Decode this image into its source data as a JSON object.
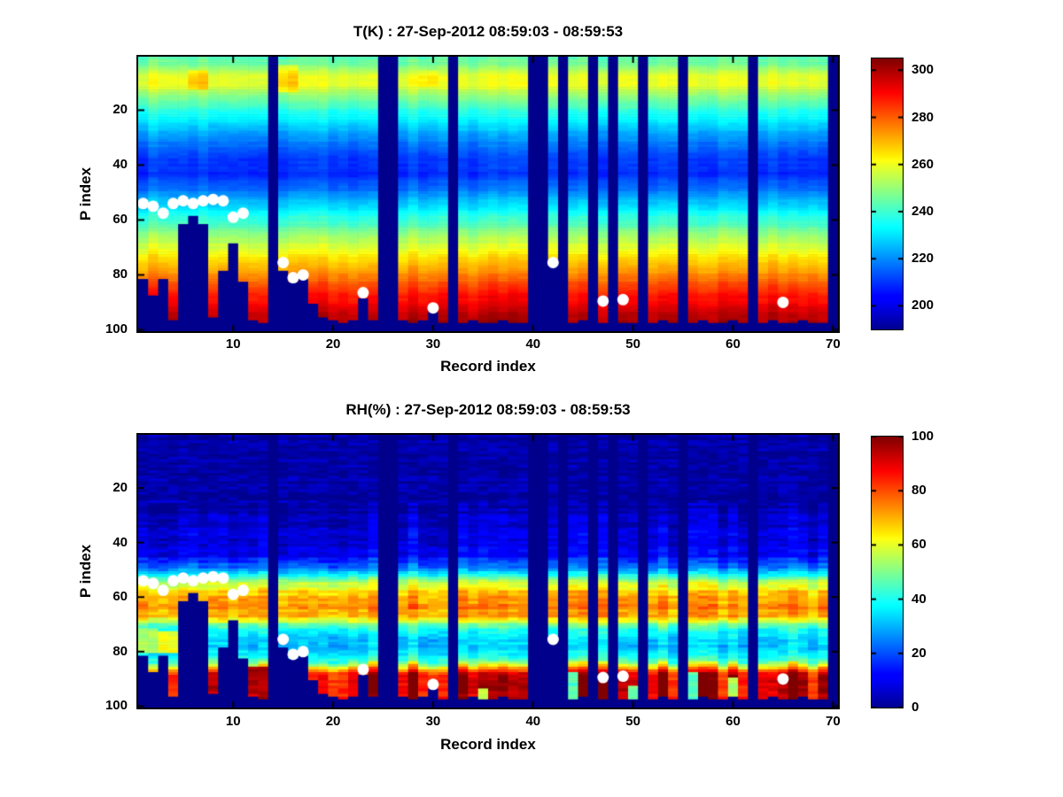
{
  "figure": {
    "background": "#ffffff",
    "marker_color": "#ffffff",
    "missing_color": "#00008C",
    "colormap": "jet"
  },
  "chart_data": [
    {
      "type": "heatmap",
      "id": "temperature",
      "title": "T(K) : 27-Sep-2012 08:59:03 - 08:59:53",
      "xlabel": "Record index",
      "ylabel": "P index",
      "x_ticks": [
        10,
        20,
        30,
        40,
        50,
        60,
        70
      ],
      "y_ticks": [
        20,
        40,
        60,
        80,
        100
      ],
      "x_range": [
        0.5,
        70.5
      ],
      "y_range": [
        0.5,
        100.5
      ],
      "grid": false,
      "colorbar": {
        "ticks": [
          200,
          220,
          240,
          260,
          280,
          300
        ],
        "range": [
          190,
          305
        ]
      },
      "value_profile": [
        [
          1,
          243
        ],
        [
          3,
          247
        ],
        [
          5,
          252
        ],
        [
          8,
          260
        ],
        [
          11,
          259
        ],
        [
          14,
          251
        ],
        [
          18,
          243
        ],
        [
          22,
          235
        ],
        [
          27,
          226
        ],
        [
          32,
          218
        ],
        [
          38,
          211
        ],
        [
          43,
          209
        ],
        [
          48,
          216
        ],
        [
          54,
          228
        ],
        [
          60,
          240
        ],
        [
          66,
          251
        ],
        [
          72,
          262
        ],
        [
          78,
          272
        ],
        [
          84,
          283
        ],
        [
          90,
          292
        ],
        [
          95,
          298
        ],
        [
          100,
          302
        ]
      ],
      "anomalies": [
        {
          "records": [
            6,
            7
          ],
          "p": [
            6,
            12
          ],
          "delta": 9
        },
        {
          "records": [
            15,
            16
          ],
          "p": [
            4,
            13
          ],
          "delta": 9
        },
        {
          "records": [
            29,
            30
          ],
          "p": [
            6,
            11
          ],
          "delta": 5
        }
      ],
      "patches": [],
      "texture": {
        "seed": 7,
        "column": 2.5,
        "column_deep": 3,
        "deep_start": 82,
        "row": 1.2,
        "cell": 1.2,
        "column_from_p": 1
      }
    },
    {
      "type": "heatmap",
      "id": "relative-humidity",
      "title": "RH(%) : 27-Sep-2012 08:59:03 - 08:59:53",
      "xlabel": "Record index",
      "ylabel": "P index",
      "x_ticks": [
        10,
        20,
        30,
        40,
        50,
        60,
        70
      ],
      "y_ticks": [
        20,
        40,
        60,
        80,
        100
      ],
      "x_range": [
        0.5,
        70.5
      ],
      "y_range": [
        0.5,
        100.5
      ],
      "grid": false,
      "colorbar": {
        "ticks": [
          0,
          20,
          40,
          60,
          80,
          100
        ],
        "range": [
          0,
          100
        ]
      },
      "value_profile": [
        [
          1,
          2
        ],
        [
          22,
          2
        ],
        [
          28,
          4
        ],
        [
          34,
          7
        ],
        [
          40,
          9
        ],
        [
          45,
          13
        ],
        [
          48,
          20
        ],
        [
          51,
          33
        ],
        [
          54,
          55
        ],
        [
          57,
          64
        ],
        [
          60,
          70
        ],
        [
          64,
          74
        ],
        [
          67,
          71
        ],
        [
          69,
          58
        ],
        [
          71,
          45
        ],
        [
          74,
          36
        ],
        [
          78,
          32
        ],
        [
          81,
          38
        ],
        [
          84,
          50
        ],
        [
          86,
          68
        ],
        [
          88,
          88
        ],
        [
          90,
          94
        ],
        [
          93,
          96
        ],
        [
          96,
          93
        ],
        [
          100,
          90
        ]
      ],
      "anomalies": [],
      "patches": [
        {
          "records": [
            1,
            2
          ],
          "p": [
            72,
            80
          ],
          "value": 55
        },
        {
          "records": [
            3,
            4
          ],
          "p": [
            73,
            80
          ],
          "value": 62
        },
        {
          "records": [
            12,
            13
          ],
          "p": [
            86,
            95
          ],
          "value": 96
        },
        {
          "records": [
            35,
            35
          ],
          "p": [
            94,
            97
          ],
          "value": 55
        },
        {
          "records": [
            44,
            44
          ],
          "p": [
            88,
            97
          ],
          "value": 45
        },
        {
          "records": [
            50,
            50
          ],
          "p": [
            93,
            97
          ],
          "value": 50
        },
        {
          "records": [
            56,
            56
          ],
          "p": [
            88,
            97
          ],
          "value": 45
        },
        {
          "records": [
            60,
            60
          ],
          "p": [
            90,
            97
          ],
          "value": 55
        }
      ],
      "texture": {
        "seed": 13,
        "column": 4,
        "column_deep": 12,
        "deep_start": 84,
        "row": 2.5,
        "cell": 3.5,
        "column_from_p": 26
      },
      "value_clamp": [
        0,
        100
      ]
    }
  ],
  "shared": {
    "records": 70,
    "p_levels": 100,
    "surface_p": [
      81,
      87,
      81,
      96,
      61,
      58,
      61,
      95,
      78,
      68,
      82,
      96,
      97,
      null,
      78,
      82,
      81,
      90,
      95,
      96,
      97,
      96,
      88,
      96,
      null,
      null,
      96,
      97,
      96,
      93,
      97,
      null,
      97,
      96,
      97,
      97,
      96,
      97,
      97,
      null,
      null,
      76,
      null,
      97,
      96,
      null,
      97,
      null,
      97,
      97,
      null,
      97,
      96,
      97,
      null,
      97,
      96,
      97,
      97,
      96,
      97,
      null,
      97,
      96,
      97,
      97,
      96,
      97,
      97,
      null
    ],
    "surface_dots": [
      [
        1,
        54
      ],
      [
        2,
        55
      ],
      [
        3,
        57.5
      ],
      [
        4,
        54
      ],
      [
        5,
        53
      ],
      [
        6,
        54
      ],
      [
        7,
        53
      ],
      [
        8,
        52.5
      ],
      [
        9,
        53
      ],
      [
        10,
        59
      ],
      [
        11,
        57.5
      ],
      [
        15,
        75.5
      ],
      [
        16,
        81
      ],
      [
        17,
        80
      ],
      [
        23,
        86.5
      ],
      [
        30,
        92
      ],
      [
        42,
        75.5
      ],
      [
        47,
        89.5
      ],
      [
        49,
        89
      ],
      [
        65,
        90
      ]
    ]
  }
}
